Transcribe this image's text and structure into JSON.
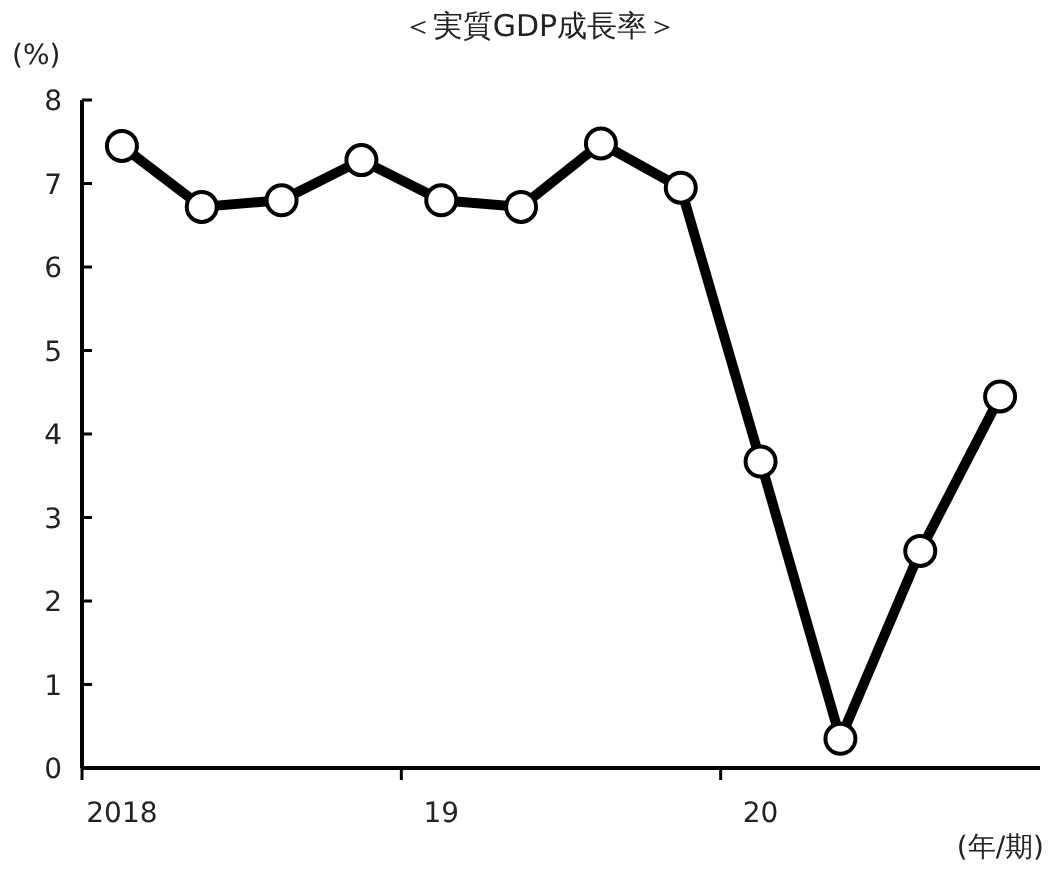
{
  "chart_data": {
    "type": "line",
    "title": "＜実質GDP成長率＞",
    "ylabel": "(%)",
    "xlabel": "(年/期)",
    "categories": [
      "2018",
      null,
      null,
      null,
      "19",
      null,
      null,
      null,
      "20",
      null,
      null,
      null
    ],
    "series": [
      {
        "color": "#000000",
        "values": [
          7.45,
          6.72,
          6.8,
          7.28,
          6.8,
          6.72,
          7.48,
          6.95,
          3.67,
          0.35,
          2.6,
          4.45
        ]
      }
    ],
    "ylim": [
      0,
      8
    ],
    "yticks": [
      0,
      1,
      2,
      3,
      4,
      5,
      6,
      7,
      8
    ],
    "marker": "circle",
    "line_style": "solid"
  }
}
